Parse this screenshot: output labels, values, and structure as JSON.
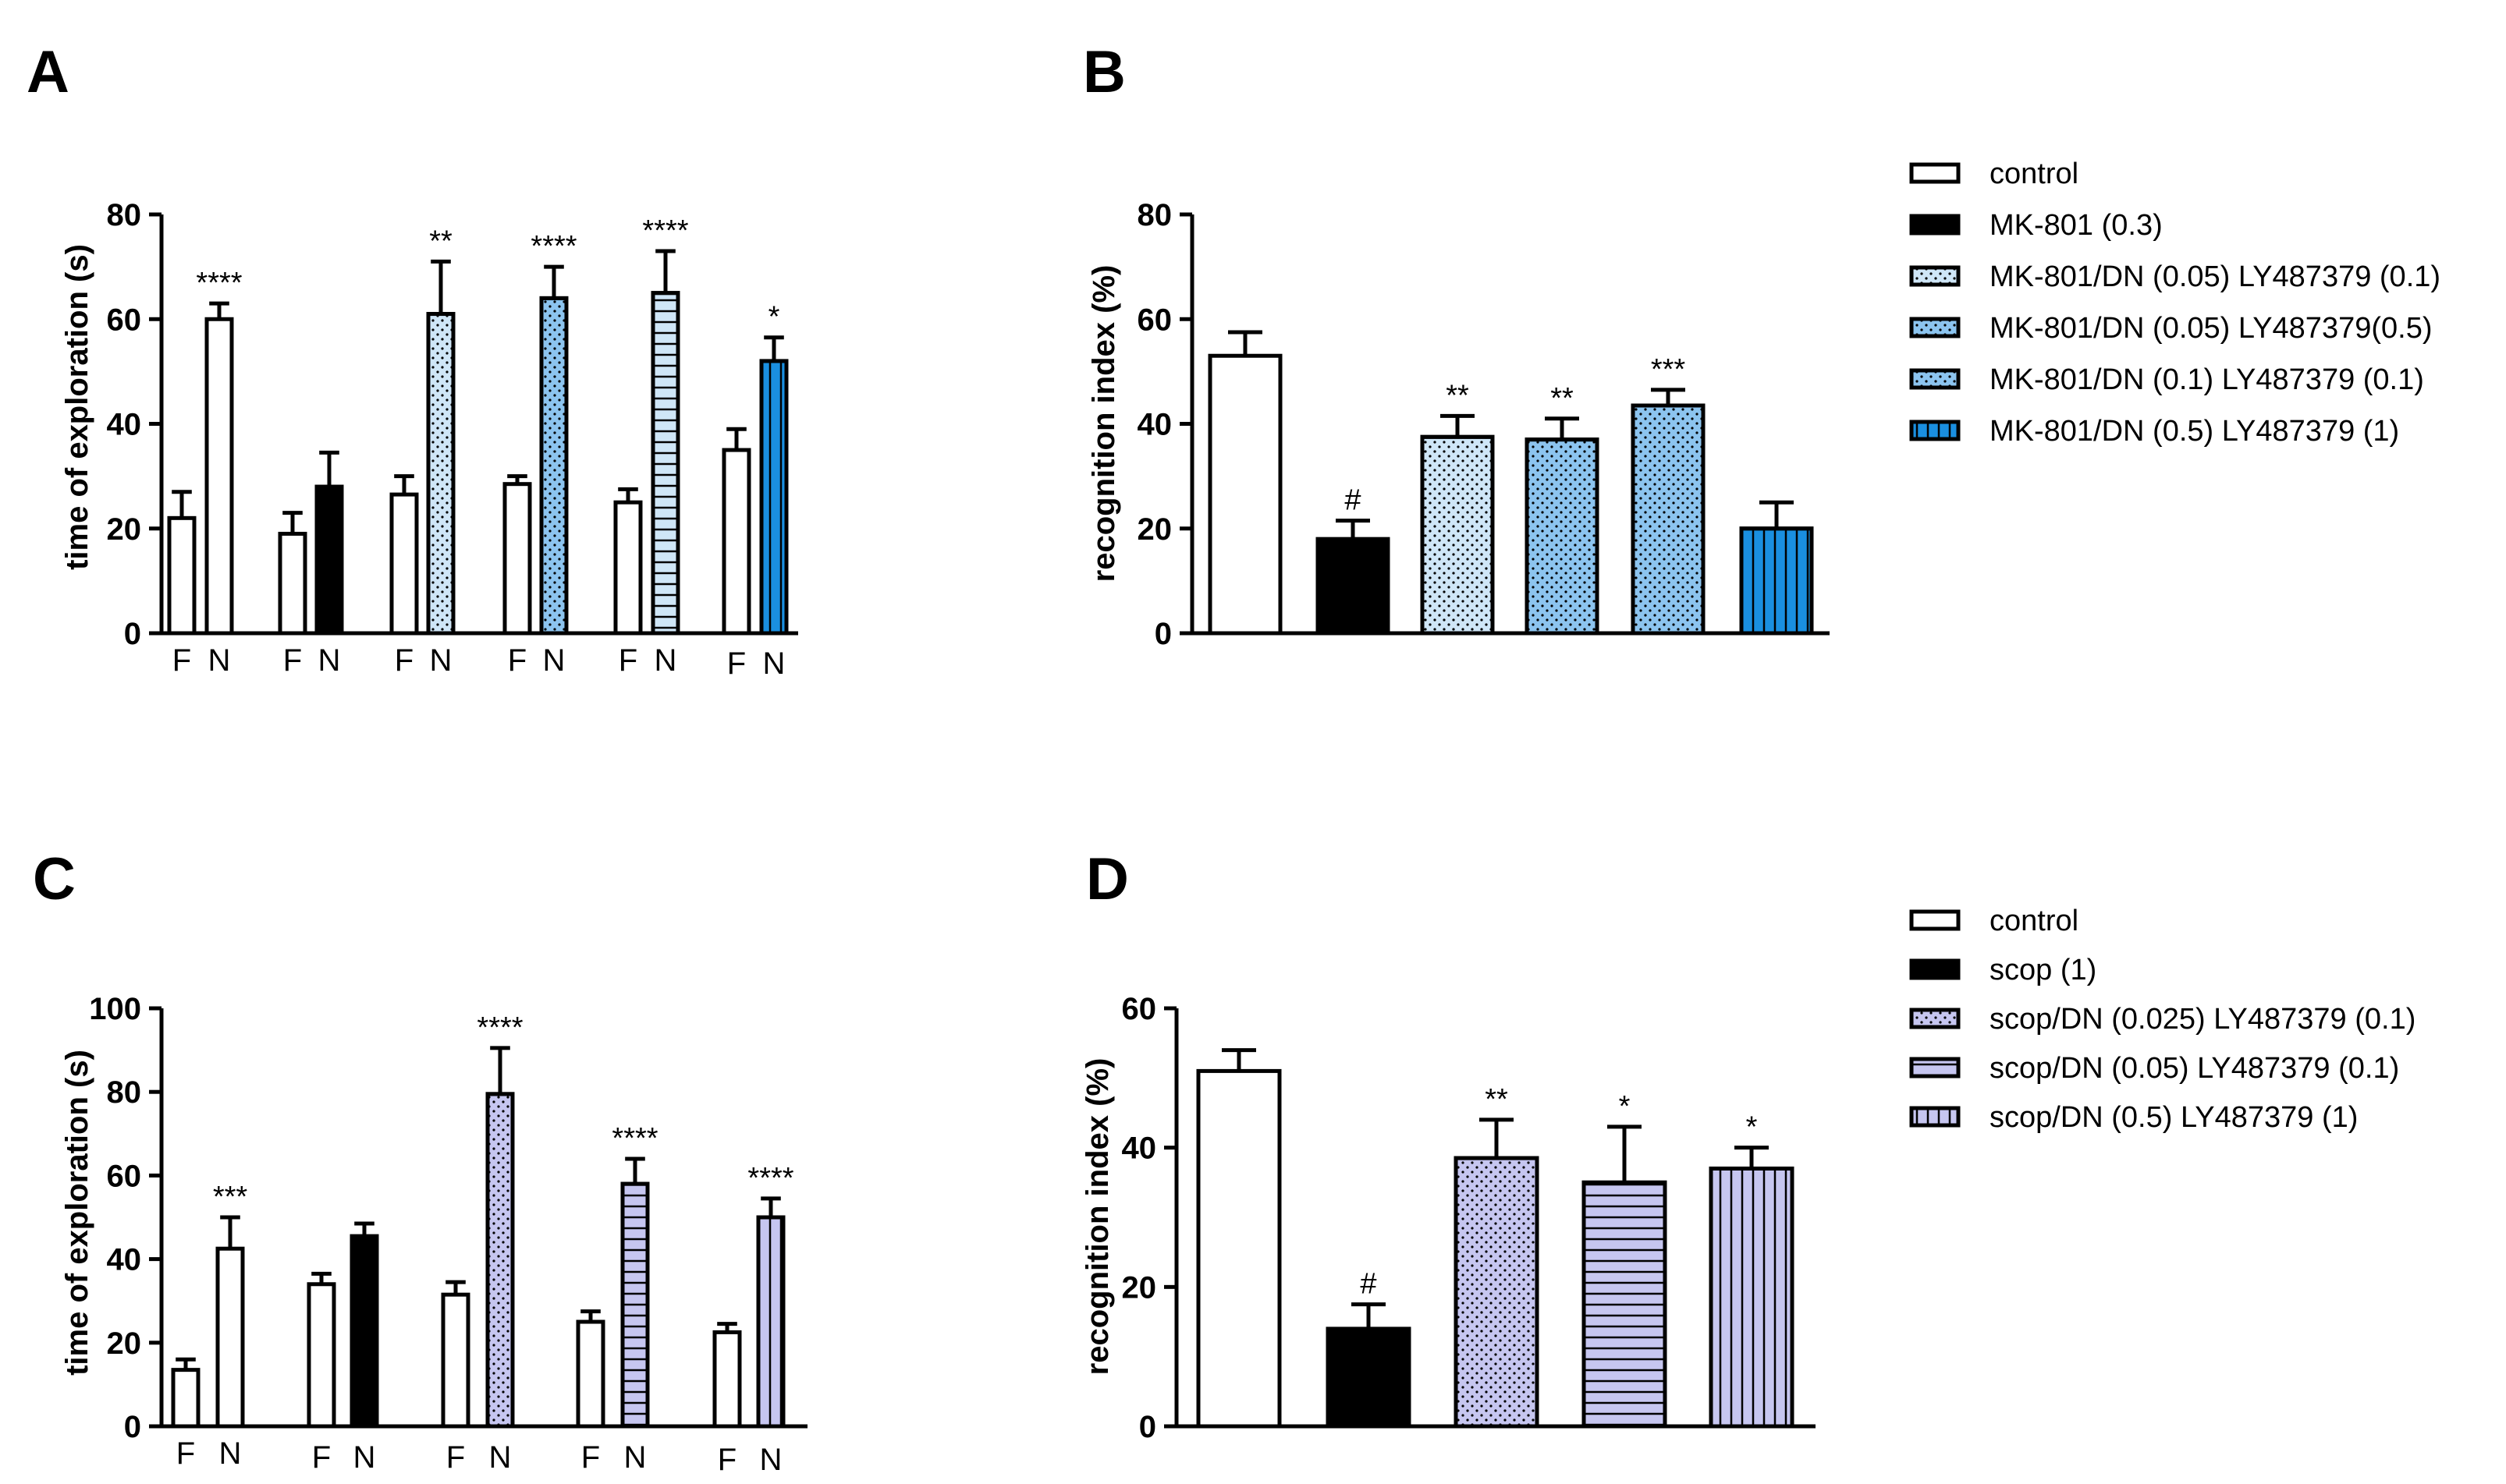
{
  "colors": {
    "white": "#ffffff",
    "black": "#000000",
    "light_blue": "#cfe6f7",
    "mid_blue": "#8cc4ef",
    "deep_blue": "#1a8fe0",
    "lavender": "#c6c6f0"
  },
  "chart_data": [
    {
      "panel": "A",
      "type": "bar",
      "ylabel": "time of exploration (s)",
      "xlabel": "",
      "ylim": [
        0,
        80
      ],
      "yticks": [
        0,
        20,
        40,
        60,
        80
      ],
      "groups": [
        {
          "bars": [
            {
              "label": "F",
              "value": 22,
              "err": 5,
              "fill": "white",
              "pattern": "none"
            },
            {
              "label": "N",
              "value": 60,
              "err": 3,
              "fill": "white",
              "pattern": "none",
              "sig": "****"
            }
          ]
        },
        {
          "bars": [
            {
              "label": "F",
              "value": 19,
              "err": 4,
              "fill": "white",
              "pattern": "none"
            },
            {
              "label": "N",
              "value": 28,
              "err": 6.5,
              "fill": "black",
              "pattern": "none"
            }
          ]
        },
        {
          "bars": [
            {
              "label": "F",
              "value": 26.5,
              "err": 3.5,
              "fill": "white",
              "pattern": "none"
            },
            {
              "label": "N",
              "value": 61,
              "err": 10,
              "fill": "light_blue",
              "pattern": "dots",
              "sig": "**"
            }
          ]
        },
        {
          "bars": [
            {
              "label": "F",
              "value": 28.5,
              "err": 1.5,
              "fill": "white",
              "pattern": "none"
            },
            {
              "label": "N",
              "value": 64,
              "err": 6,
              "fill": "mid_blue",
              "pattern": "dots",
              "sig": "****"
            }
          ]
        },
        {
          "bars": [
            {
              "label": "F",
              "value": 25,
              "err": 2.5,
              "fill": "white",
              "pattern": "none"
            },
            {
              "label": "N",
              "value": 65,
              "err": 8,
              "fill": "light_blue",
              "pattern": "hlines",
              "sig": "****"
            }
          ]
        },
        {
          "bars": [
            {
              "label": "F",
              "value": 35,
              "err": 4,
              "fill": "white",
              "pattern": "none"
            },
            {
              "label": "N",
              "value": 52,
              "err": 4.5,
              "fill": "deep_blue",
              "pattern": "vlines",
              "sig": "*"
            }
          ]
        }
      ]
    },
    {
      "panel": "B",
      "type": "bar",
      "ylabel": "recognition index (%)",
      "xlabel": "",
      "ylim": [
        0,
        80
      ],
      "yticks": [
        0,
        20,
        40,
        60,
        80
      ],
      "bars": [
        {
          "name": "control",
          "value": 53,
          "err": 4.5,
          "fill": "white",
          "pattern": "none"
        },
        {
          "name": "MK-801 (0.3)",
          "value": 18,
          "err": 3.5,
          "fill": "black",
          "pattern": "none",
          "sig": "#"
        },
        {
          "name": "MK-801/DN (0.05) LY487379 (0.1)",
          "value": 37.5,
          "err": 4,
          "fill": "light_blue",
          "pattern": "dots",
          "sig": "**"
        },
        {
          "name": "MK-801/DN (0.05) LY487379(0.5)",
          "value": 37,
          "err": 4,
          "fill": "mid_blue",
          "pattern": "dots",
          "sig": "**"
        },
        {
          "name": "MK-801/DN (0.1) LY487379 (0.1)",
          "value": 43.5,
          "err": 3,
          "fill": "mid_blue",
          "pattern": "dots",
          "sig": "***"
        },
        {
          "name": "MK-801/DN (0.5) LY487379 (1)",
          "value": 20,
          "err": 5,
          "fill": "deep_blue",
          "pattern": "vlines"
        }
      ],
      "legend": [
        {
          "label": "control",
          "fill": "white",
          "pattern": "none"
        },
        {
          "label": "MK-801 (0.3)",
          "fill": "black",
          "pattern": "none"
        },
        {
          "label": "MK-801/DN (0.05) LY487379 (0.1)",
          "fill": "light_blue",
          "pattern": "dots"
        },
        {
          "label": "MK-801/DN (0.05) LY487379(0.5)",
          "fill": "mid_blue",
          "pattern": "dots"
        },
        {
          "label": "MK-801/DN (0.1) LY487379 (0.1)",
          "fill": "mid_blue",
          "pattern": "dots"
        },
        {
          "label": "MK-801/DN (0.5) LY487379 (1)",
          "fill": "deep_blue",
          "pattern": "vlines"
        }
      ]
    },
    {
      "panel": "C",
      "type": "bar",
      "ylabel": "time of exploration (s)",
      "xlabel": "",
      "ylim": [
        0,
        100
      ],
      "yticks": [
        0,
        20,
        40,
        60,
        80,
        100
      ],
      "groups": [
        {
          "bars": [
            {
              "label": "F",
              "value": 13.5,
              "err": 2.5,
              "fill": "white",
              "pattern": "none"
            },
            {
              "label": "N",
              "value": 42.5,
              "err": 7.5,
              "fill": "white",
              "pattern": "none",
              "sig": "***"
            }
          ]
        },
        {
          "bars": [
            {
              "label": "F",
              "value": 34,
              "err": 2.5,
              "fill": "white",
              "pattern": "none"
            },
            {
              "label": "N",
              "value": 45.5,
              "err": 3,
              "fill": "black",
              "pattern": "none"
            }
          ]
        },
        {
          "bars": [
            {
              "label": "F",
              "value": 31.5,
              "err": 3,
              "fill": "white",
              "pattern": "none"
            },
            {
              "label": "N",
              "value": 79.5,
              "err": 11,
              "fill": "lavender",
              "pattern": "dots",
              "sig": "****"
            }
          ]
        },
        {
          "bars": [
            {
              "label": "F",
              "value": 25,
              "err": 2.5,
              "fill": "white",
              "pattern": "none"
            },
            {
              "label": "N",
              "value": 58,
              "err": 6,
              "fill": "lavender",
              "pattern": "hlines",
              "sig": "****"
            }
          ]
        },
        {
          "bars": [
            {
              "label": "F",
              "value": 22.5,
              "err": 2,
              "fill": "white",
              "pattern": "none"
            },
            {
              "label": "N",
              "value": 50,
              "err": 4.5,
              "fill": "lavender",
              "pattern": "vlines",
              "sig": "****"
            }
          ]
        }
      ]
    },
    {
      "panel": "D",
      "type": "bar",
      "ylabel": "recognition index (%)",
      "xlabel": "",
      "ylim": [
        0,
        60
      ],
      "yticks": [
        0,
        20,
        40,
        60
      ],
      "bars": [
        {
          "name": "control",
          "value": 51,
          "err": 3,
          "fill": "white",
          "pattern": "none"
        },
        {
          "name": "scop (1)",
          "value": 14,
          "err": 3.5,
          "fill": "black",
          "pattern": "none",
          "sig": "#"
        },
        {
          "name": "scop/DN (0.025) LY487379 (0.1)",
          "value": 38.5,
          "err": 5.5,
          "fill": "lavender",
          "pattern": "dots",
          "sig": "**"
        },
        {
          "name": "scop/DN (0.05) LY487379 (0.1)",
          "value": 35,
          "err": 8,
          "fill": "lavender",
          "pattern": "hlines",
          "sig": "*"
        },
        {
          "name": "scop/DN (0.5) LY487379 (1)",
          "value": 37,
          "err": 3,
          "fill": "lavender",
          "pattern": "vlines",
          "sig": "*"
        }
      ],
      "legend": [
        {
          "label": "control",
          "fill": "white",
          "pattern": "none"
        },
        {
          "label": "scop (1)",
          "fill": "black",
          "pattern": "none"
        },
        {
          "label": "scop/DN (0.025) LY487379 (0.1)",
          "fill": "lavender",
          "pattern": "dots"
        },
        {
          "label": "scop/DN (0.05) LY487379 (0.1)",
          "fill": "lavender",
          "pattern": "hlines"
        },
        {
          "label": "scop/DN (0.5) LY487379 (1)",
          "fill": "lavender",
          "pattern": "vlines"
        }
      ]
    }
  ]
}
